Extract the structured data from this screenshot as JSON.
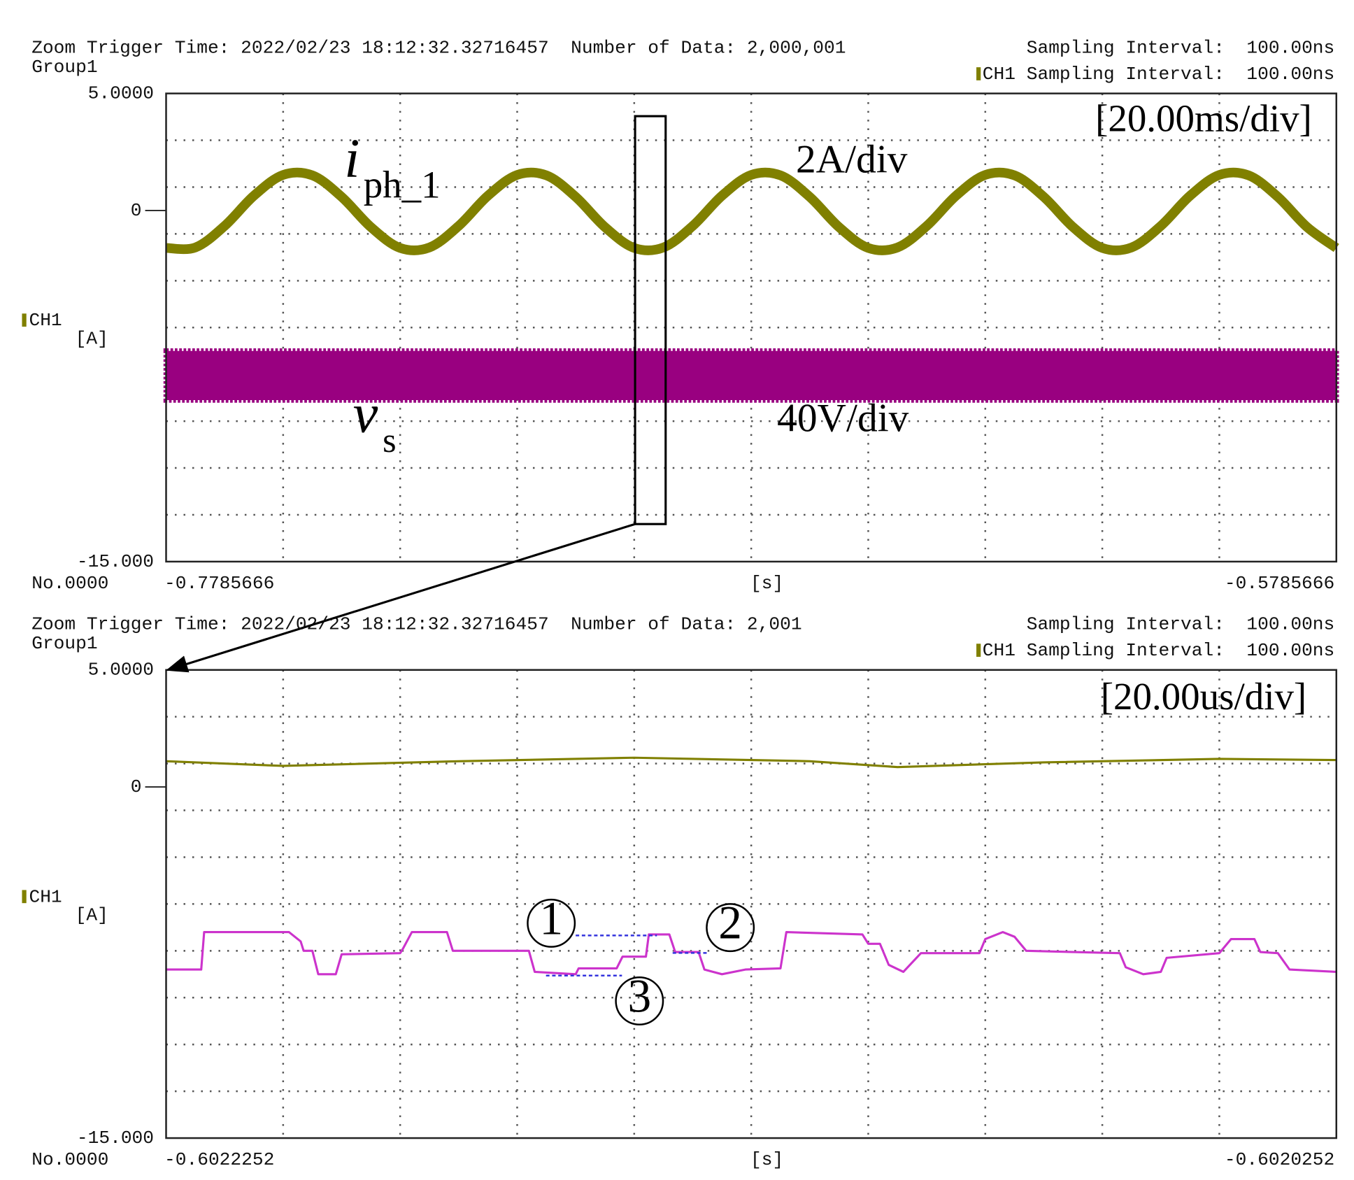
{
  "chart_data": [
    {
      "type": "line",
      "title": "Zoom Trigger Time: 2022/02/23 18:12:32.32716457  Number of Data: 2,000,001",
      "group": "Group1",
      "sampling": "Sampling Interval:  100.00ns",
      "channel_sampling": "CH1 Sampling Interval:  100.00ns",
      "channel": "CH1",
      "unit": "[A]",
      "record": "No.0000",
      "xlabel": "[s]",
      "xlim": [
        -0.7785666,
        -0.5785666
      ],
      "xticks": [
        -0.7785666,
        -0.5785666
      ],
      "ylim": [
        -15,
        5
      ],
      "yticks": [
        {
          "value": 5,
          "label": "5.0000"
        },
        0,
        {
          "value": -15,
          "label": "-15.000"
        }
      ],
      "grid": true,
      "band": {
        "color": "#990080",
        "x": [
          -0.7785666,
          -0.5785666
        ],
        "upper": [
          -6.0,
          -6.0
        ],
        "lower": [
          -8.1,
          -8.1
        ]
      },
      "series": [
        {
          "color": "#808000",
          "smooth": true,
          "x": [
            -0.7785666,
            -0.7735666,
            -0.7685666,
            -0.7635666,
            -0.7585666,
            -0.7535666,
            -0.7485666,
            -0.7435666,
            -0.7385666,
            -0.7335666,
            -0.7285666,
            -0.7235666,
            -0.7185666,
            -0.7135666,
            -0.7085666,
            -0.7035666,
            -0.6985666,
            -0.6935666,
            -0.6885666,
            -0.6835666,
            -0.6785666,
            -0.6735666,
            -0.6685666,
            -0.6635666,
            -0.6585666,
            -0.6535666,
            -0.6485666,
            -0.6435666,
            -0.6385666,
            -0.6335666,
            -0.6285666,
            -0.6235666,
            -0.6185666,
            -0.6135666,
            -0.6085666,
            -0.6035666,
            -0.5985666,
            -0.5935666,
            -0.5885666,
            -0.5835666,
            -0.5785666
          ],
          "values": [
            -1.6,
            -1.58,
            -0.66,
            0.63,
            1.52,
            1.5,
            0.58,
            -0.71,
            -1.6,
            -1.58,
            -0.66,
            0.63,
            1.52,
            1.5,
            0.58,
            -0.71,
            -1.6,
            -1.58,
            -0.66,
            0.63,
            1.52,
            1.5,
            0.58,
            -0.71,
            -1.6,
            -1.58,
            -0.66,
            0.63,
            1.52,
            1.5,
            0.58,
            -0.71,
            -1.6,
            -1.58,
            -0.66,
            0.63,
            1.52,
            1.5,
            0.58,
            -0.71,
            -1.6
          ]
        }
      ],
      "annotations": [
        {
          "text": "[20.00ms/div]"
        },
        {
          "text": "2A/div"
        },
        {
          "text": "40V/div"
        },
        {
          "text": "i",
          "sub": "ph_1"
        },
        {
          "text": "v",
          "sub": "s"
        }
      ]
    },
    {
      "type": "line",
      "title": "Zoom Trigger Time: 2022/02/23 18:12:32.32716457  Number of Data: 2,001",
      "group": "Group1",
      "sampling": "Sampling Interval:  100.00ns",
      "channel_sampling": "CH1 Sampling Interval:  100.00ns",
      "channel": "CH1",
      "unit": "[A]",
      "record": "No.0000",
      "xlabel": "[s]",
      "xlim": [
        -0.6022252,
        -0.6020252
      ],
      "xticks": [
        -0.6022252,
        -0.6020252
      ],
      "ylim": [
        -15,
        5
      ],
      "yticks": [
        {
          "value": 5,
          "label": "5.0000"
        },
        0,
        {
          "value": -15,
          "label": "-15.000"
        }
      ],
      "grid": true,
      "series": [
        {
          "color": "#808000",
          "smooth": false,
          "x": [
            -0.6022252,
            -0.6022052,
            -0.6021752,
            -0.6021452,
            -0.6021152,
            -0.6021002,
            -0.6020752,
            -0.6020452,
            -0.6020252
          ],
          "values": [
            1.1,
            0.9,
            1.1,
            1.25,
            1.1,
            0.85,
            1.05,
            1.2,
            1.15
          ]
        },
        {
          "color": "#cc33cc",
          "smooth": false,
          "x": [
            -0.6022252,
            -0.6022192,
            -0.6022187,
            -0.6022042,
            -0.6022022,
            -0.6022017,
            -0.6022002,
            -0.6021992,
            -0.6021962,
            -0.6021952,
            -0.6021852,
            -0.6021847,
            -0.6021832,
            -0.6021772,
            -0.6021762,
            -0.6021632,
            -0.6021622,
            -0.6021552,
            -0.6021547,
            -0.6021482,
            -0.6021472,
            -0.6021432,
            -0.6021427,
            -0.6021392,
            -0.6021382,
            -0.6021342,
            -0.6021332,
            -0.6021302,
            -0.6021262,
            -0.6021202,
            -0.6021192,
            -0.6021062,
            -0.6021052,
            -0.6021032,
            -0.6021017,
            -0.6020992,
            -0.6020962,
            -0.6020862,
            -0.6020852,
            -0.6020822,
            -0.6020802,
            -0.6020782,
            -0.6020622,
            -0.6020612,
            -0.6020582,
            -0.6020552,
            -0.6020542,
            -0.6020452,
            -0.6020432,
            -0.6020392,
            -0.6020382,
            -0.6020352,
            -0.6020332,
            -0.6020252
          ],
          "values": [
            -7.8,
            -7.8,
            -6.2,
            -6.2,
            -6.6,
            -7.0,
            -7.0,
            -8.0,
            -8.0,
            -7.15,
            -7.1,
            -6.9,
            -6.2,
            -6.2,
            -7.0,
            -7.0,
            -7.9,
            -8.0,
            -7.75,
            -7.75,
            -7.25,
            -7.25,
            -6.3,
            -6.3,
            -7.05,
            -7.05,
            -7.8,
            -8.0,
            -7.8,
            -7.75,
            -6.2,
            -6.3,
            -6.7,
            -6.7,
            -7.6,
            -7.9,
            -7.1,
            -7.1,
            -6.5,
            -6.2,
            -6.4,
            -7.0,
            -7.1,
            -7.7,
            -8.0,
            -7.9,
            -7.3,
            -7.1,
            -6.5,
            -6.5,
            -7.05,
            -7.1,
            -7.8,
            -7.9
          ]
        }
      ],
      "annotations": [
        {
          "text": "[20.00us/div]"
        },
        {
          "text": "1",
          "color": "#2a2acc"
        },
        {
          "text": "2",
          "color": "#2a2acc"
        },
        {
          "text": "3",
          "color": "#2a2acc"
        }
      ]
    }
  ]
}
